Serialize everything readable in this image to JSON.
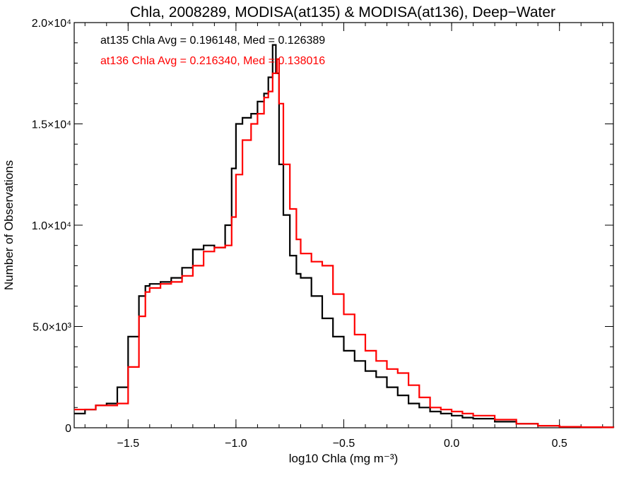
{
  "chart_data": {
    "type": "line",
    "title": "Chla, 2008289, MODISA(at135) & MODISA(at136), Deep−Water",
    "xlabel": "log10 Chla (mg m⁻³)",
    "ylabel": "Number of Observations",
    "xlim": [
      -1.75,
      0.75
    ],
    "ylim": [
      0,
      20000
    ],
    "x_ticks": [
      {
        "value": -1.5,
        "label": "−1.5"
      },
      {
        "value": -1.0,
        "label": "−1.0"
      },
      {
        "value": -0.5,
        "label": "−0.5"
      },
      {
        "value": 0.0,
        "label": "0.0"
      },
      {
        "value": 0.5,
        "label": "0.5"
      }
    ],
    "y_ticks": [
      {
        "value": 0,
        "label": "0"
      },
      {
        "value": 5000,
        "label": "5.0×10³"
      },
      {
        "value": 10000,
        "label": "1.0×10⁴"
      },
      {
        "value": 15000,
        "label": "1.5×10⁴"
      },
      {
        "value": 20000,
        "label": "2.0×10⁴"
      }
    ],
    "annotations": [
      {
        "text": "at135 Chla Avg = 0.196148, Med = 0.126389",
        "color": "#000000"
      },
      {
        "text": "at136 Chla Avg = 0.216340, Med = 0.138016",
        "color": "#ff0000"
      }
    ],
    "series": [
      {
        "color": "#000000",
        "x": [
          -1.75,
          -1.7,
          -1.65,
          -1.6,
          -1.55,
          -1.5,
          -1.45,
          -1.42,
          -1.4,
          -1.35,
          -1.3,
          -1.25,
          -1.2,
          -1.15,
          -1.1,
          -1.05,
          -1.02,
          -1.0,
          -0.97,
          -0.93,
          -0.9,
          -0.87,
          -0.85,
          -0.83,
          -0.815,
          -0.8,
          -0.78,
          -0.75,
          -0.72,
          -0.7,
          -0.65,
          -0.6,
          -0.55,
          -0.5,
          -0.45,
          -0.4,
          -0.35,
          -0.3,
          -0.25,
          -0.2,
          -0.15,
          -0.1,
          -0.05,
          0.0,
          0.05,
          0.1,
          0.2,
          0.3,
          0.4,
          0.5,
          0.6,
          0.7,
          0.75
        ],
        "values": [
          700,
          900,
          1100,
          1200,
          2000,
          4500,
          6500,
          7000,
          7100,
          7200,
          7400,
          7900,
          8800,
          9000,
          8900,
          10000,
          12800,
          15000,
          15300,
          15500,
          16100,
          16500,
          17300,
          18900,
          17500,
          13000,
          10500,
          8500,
          7600,
          7400,
          6500,
          5400,
          4500,
          3800,
          3300,
          2800,
          2500,
          2000,
          1600,
          1200,
          1000,
          800,
          700,
          600,
          500,
          450,
          300,
          200,
          100,
          50,
          30,
          20,
          10
        ]
      },
      {
        "color": "#ff0000",
        "x": [
          -1.75,
          -1.7,
          -1.65,
          -1.6,
          -1.55,
          -1.5,
          -1.45,
          -1.42,
          -1.4,
          -1.35,
          -1.3,
          -1.25,
          -1.2,
          -1.15,
          -1.1,
          -1.05,
          -1.02,
          -1.0,
          -0.97,
          -0.93,
          -0.9,
          -0.87,
          -0.85,
          -0.83,
          -0.81,
          -0.8,
          -0.78,
          -0.75,
          -0.72,
          -0.7,
          -0.65,
          -0.6,
          -0.55,
          -0.5,
          -0.45,
          -0.4,
          -0.35,
          -0.3,
          -0.25,
          -0.2,
          -0.15,
          -0.1,
          -0.05,
          0.0,
          0.05,
          0.1,
          0.2,
          0.3,
          0.4,
          0.5,
          0.6,
          0.7,
          0.75
        ],
        "values": [
          900,
          900,
          1100,
          1100,
          1200,
          3000,
          5500,
          6700,
          6900,
          7100,
          7200,
          7500,
          8000,
          8700,
          8900,
          9000,
          10400,
          12500,
          14200,
          15000,
          15500,
          16300,
          16600,
          17500,
          18200,
          16000,
          13000,
          10800,
          9300,
          8600,
          8200,
          8000,
          6600,
          5600,
          4600,
          3800,
          3300,
          2900,
          2700,
          2100,
          1500,
          1000,
          900,
          800,
          700,
          600,
          400,
          200,
          100,
          50,
          30,
          20,
          10
        ]
      }
    ]
  }
}
